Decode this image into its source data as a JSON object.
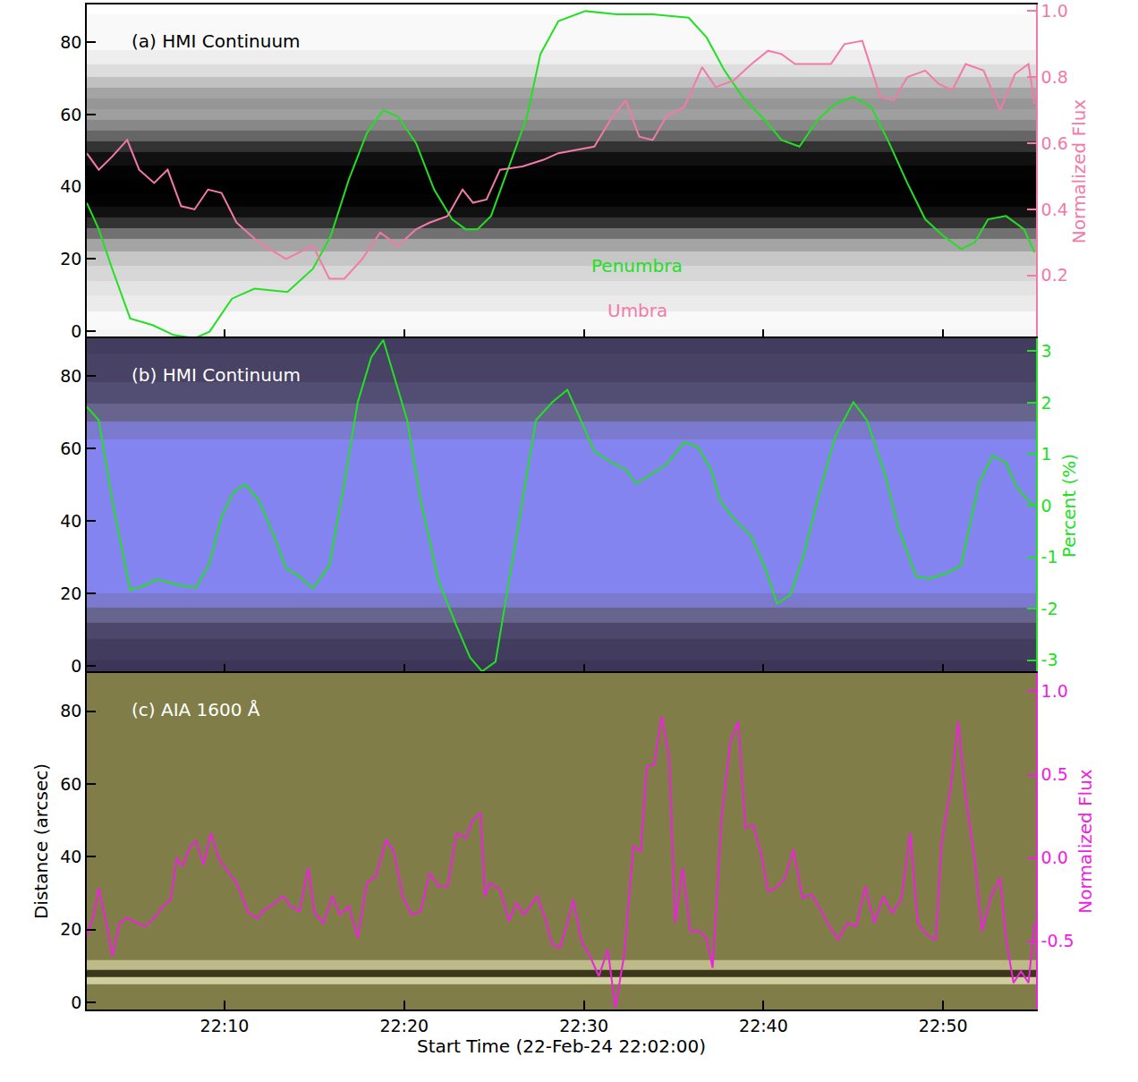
{
  "chart_data": [
    {
      "type": "line",
      "title": "(a) HMI Continuum",
      "xlim": [
        "22:02:20",
        "22:55:10"
      ],
      "xticks": [
        "22:10",
        "22:20",
        "22:30",
        "22:40",
        "22:50"
      ],
      "ylim": [
        -2,
        90.5
      ],
      "yticks": [
        0,
        20,
        40,
        60,
        80
      ],
      "y2lim": [
        0.01,
        1.02
      ],
      "y2ticks": [
        {
          "value": 0.2,
          "label": "0.2"
        },
        {
          "value": 0.4,
          "label": "0.4"
        },
        {
          "value": 0.6,
          "label": "0.6"
        },
        {
          "value": 0.8,
          "label": "0.8"
        },
        {
          "value": 1.0,
          "label": "1.0"
        }
      ],
      "y2label": "Normalized Flux",
      "grid": false,
      "tick_labels": "y",
      "background": {
        "distance": [
          -2,
          3,
          8,
          12,
          16,
          20,
          24,
          27,
          30,
          33,
          36,
          40,
          44,
          48,
          51,
          54,
          57,
          60,
          63,
          66,
          69,
          72,
          76,
          80,
          85,
          90.5
        ],
        "intensity": [
          0.88,
          0.9,
          0.85,
          0.82,
          0.78,
          0.72,
          0.6,
          0.42,
          0.2,
          0.08,
          0.03,
          0.02,
          0.03,
          0.08,
          0.2,
          0.38,
          0.5,
          0.58,
          0.55,
          0.6,
          0.7,
          0.8,
          0.86,
          0.9,
          0.9,
          0.92
        ]
      },
      "series": [
        {
          "name": "Penumbra",
          "color": "#22e022",
          "axis": "y2",
          "x": [
            "22:02:20",
            "22:03:00",
            "22:03:45",
            "22:04:45",
            "22:06:00",
            "22:07:10",
            "22:08:20",
            "22:09:10",
            "22:10:25",
            "22:11:40",
            "22:13:30",
            "22:14:55",
            "22:15:55",
            "22:16:55",
            "22:17:55",
            "22:18:50",
            "22:19:40",
            "22:20:40",
            "22:21:40",
            "22:22:40",
            "22:23:25",
            "22:24:05",
            "22:24:50",
            "22:25:50",
            "22:26:50",
            "22:27:35",
            "22:28:35",
            "22:30:05",
            "22:31:50",
            "22:33:50",
            "22:35:50",
            "22:36:50",
            "22:37:50",
            "22:38:50",
            "22:40:05",
            "22:41:00",
            "22:42:00",
            "22:43:00",
            "22:44:00",
            "22:45:00",
            "22:46:00",
            "22:47:00",
            "22:48:00",
            "22:49:00",
            "22:50:00",
            "22:51:00",
            "22:51:45",
            "22:52:30",
            "22:53:30",
            "22:54:30",
            "22:55:05"
          ],
          "values": [
            0.42,
            0.34,
            0.22,
            0.07,
            0.05,
            0.02,
            0.01,
            0.03,
            0.13,
            0.16,
            0.15,
            0.22,
            0.32,
            0.49,
            0.63,
            0.7,
            0.68,
            0.6,
            0.46,
            0.37,
            0.34,
            0.34,
            0.38,
            0.53,
            0.68,
            0.87,
            0.97,
            1.0,
            0.99,
            0.99,
            0.98,
            0.92,
            0.82,
            0.74,
            0.67,
            0.61,
            0.59,
            0.67,
            0.72,
            0.74,
            0.71,
            0.6,
            0.48,
            0.37,
            0.32,
            0.28,
            0.3,
            0.37,
            0.38,
            0.34,
            0.27
          ]
        },
        {
          "name": "Umbra",
          "color": "#f27aa8",
          "axis": "y2",
          "x": [
            "22:02:20",
            "22:03:00",
            "22:03:45",
            "22:04:35",
            "22:05:15",
            "22:06:05",
            "22:06:50",
            "22:07:35",
            "22:08:20",
            "22:09:05",
            "22:09:50",
            "22:10:40",
            "22:11:55",
            "22:13:25",
            "22:14:55",
            "22:15:50",
            "22:16:40",
            "22:17:40",
            "22:18:40",
            "22:19:40",
            "22:20:40",
            "22:21:25",
            "22:22:25",
            "22:23:15",
            "22:23:50",
            "22:24:35",
            "22:25:20",
            "22:26:35",
            "22:27:45",
            "22:28:35",
            "22:29:35",
            "22:30:35",
            "22:31:35",
            "22:32:20",
            "22:33:05",
            "22:33:50",
            "22:34:35",
            "22:35:35",
            "22:36:35",
            "22:37:20",
            "22:38:20",
            "22:39:20",
            "22:40:15",
            "22:41:00",
            "22:41:45",
            "22:42:45",
            "22:43:45",
            "22:44:30",
            "22:45:30",
            "22:46:30",
            "22:47:15",
            "22:48:00",
            "22:49:00",
            "22:49:45",
            "22:50:30",
            "22:51:15",
            "22:52:15",
            "22:53:10",
            "22:54:00",
            "22:54:45",
            "22:55:05"
          ],
          "values": [
            0.57,
            0.52,
            0.56,
            0.61,
            0.52,
            0.48,
            0.52,
            0.41,
            0.4,
            0.46,
            0.45,
            0.36,
            0.3,
            0.25,
            0.29,
            0.19,
            0.19,
            0.25,
            0.33,
            0.29,
            0.34,
            0.36,
            0.38,
            0.46,
            0.42,
            0.43,
            0.52,
            0.53,
            0.55,
            0.57,
            0.58,
            0.59,
            0.68,
            0.73,
            0.62,
            0.61,
            0.68,
            0.71,
            0.83,
            0.77,
            0.79,
            0.84,
            0.88,
            0.87,
            0.84,
            0.84,
            0.84,
            0.9,
            0.91,
            0.74,
            0.73,
            0.8,
            0.82,
            0.78,
            0.76,
            0.84,
            0.82,
            0.7,
            0.81,
            0.84,
            0.72
          ]
        }
      ]
    },
    {
      "type": "line",
      "title": "(b) HMI Continuum",
      "xlim": [
        "22:02:20",
        "22:55:10"
      ],
      "xticks": [
        "22:10",
        "22:20",
        "22:30",
        "22:40",
        "22:50"
      ],
      "ylim": [
        -2,
        90.5
      ],
      "yticks": [
        0,
        20,
        40,
        60,
        80
      ],
      "y2lim": [
        -3.25,
        3.25
      ],
      "y2ticks": [
        -3,
        -2,
        -1,
        0,
        1,
        2,
        3
      ],
      "y2label": "Percent (%)",
      "grid": false,
      "tick_labels": "y",
      "background": {
        "distance": [
          -2,
          5,
          10,
          14,
          18,
          22,
          60,
          65,
          70,
          75,
          82,
          90.5
        ],
        "intensity": [
          0.15,
          0.2,
          0.3,
          0.55,
          0.85,
          1,
          1,
          0.85,
          0.55,
          0.35,
          0.25,
          0.2
        ]
      },
      "series": [
        {
          "color": "#22e022",
          "axis": "y2",
          "x": [
            "22:02:20",
            "22:03:00",
            "22:03:45",
            "22:04:45",
            "22:05:30",
            "22:06:15",
            "22:07:00",
            "22:07:40",
            "22:08:25",
            "22:09:10",
            "22:09:50",
            "22:10:30",
            "22:11:10",
            "22:11:55",
            "22:12:40",
            "22:13:25",
            "22:14:10",
            "22:14:55",
            "22:15:50",
            "22:16:40",
            "22:17:25",
            "22:18:10",
            "22:18:50",
            "22:19:25",
            "22:20:10",
            "22:20:55",
            "22:21:55",
            "22:22:55",
            "22:23:40",
            "22:24:20",
            "22:25:05",
            "22:25:45",
            "22:26:35",
            "22:27:20",
            "22:28:15",
            "22:29:05",
            "22:29:50",
            "22:30:35",
            "22:31:35",
            "22:32:20",
            "22:32:55",
            "22:33:35",
            "22:34:35",
            "22:35:35",
            "22:36:20",
            "22:37:05",
            "22:37:35",
            "22:38:20",
            "22:39:20",
            "22:40:05",
            "22:40:45",
            "22:41:30",
            "22:42:15",
            "22:43:00",
            "22:44:00",
            "22:45:00",
            "22:45:45",
            "22:46:45",
            "22:47:30",
            "22:48:30",
            "22:49:15",
            "22:50:15",
            "22:51:00",
            "22:52:00",
            "22:52:45",
            "22:53:30",
            "22:54:05",
            "22:54:45",
            "22:55:05"
          ],
          "values": [
            1.92,
            1.66,
            0.1,
            -1.64,
            -1.56,
            -1.43,
            -1.5,
            -1.56,
            -1.59,
            -1.12,
            -0.22,
            0.27,
            0.41,
            0.1,
            -0.51,
            -1.21,
            -1.38,
            -1.61,
            -1.16,
            0.44,
            2.01,
            2.88,
            3.22,
            2.53,
            1.66,
            0.1,
            -1.47,
            -2.34,
            -2.95,
            -3.22,
            -3.03,
            -1.64,
            0.1,
            1.66,
            2.01,
            2.25,
            1.66,
            1.05,
            0.83,
            0.7,
            0.43,
            0.58,
            0.79,
            1.23,
            1.14,
            0.7,
            0.1,
            -0.25,
            -0.6,
            -1.21,
            -1.9,
            -1.73,
            -0.95,
            0.1,
            1.35,
            2.01,
            1.66,
            0.62,
            -0.43,
            -1.38,
            -1.42,
            -1.3,
            -1.16,
            0.44,
            0.97,
            0.83,
            0.36,
            0.1,
            0.01
          ]
        }
      ]
    },
    {
      "type": "line",
      "title": "(c) AIA 1600 Å",
      "xlim": [
        "22:02:20",
        "22:55:10"
      ],
      "xticks": [
        "22:10",
        "22:20",
        "22:30",
        "22:40",
        "22:50"
      ],
      "xlabel": "Start Time (22-Feb-24 22:02:00)",
      "ylim": [
        -2,
        90.5
      ],
      "yticks": [
        0,
        20,
        40,
        60,
        80
      ],
      "ylabel": "Distance (arcsec)",
      "y2lim": [
        -0.91,
        1.11
      ],
      "y2ticks": [
        {
          "value": -0.5,
          "label": "-0.5"
        },
        {
          "value": 0,
          "label": "0.0"
        },
        {
          "value": 0.5,
          "label": "0.5"
        },
        {
          "value": 1.0,
          "label": "1.0"
        }
      ],
      "y2label": "Normalized Flux",
      "grid": false,
      "background": {
        "distance": [
          -2,
          4,
          6,
          8,
          10,
          13,
          20,
          90.5
        ],
        "intensity": [
          0.5,
          0.5,
          0.7,
          0.35,
          0.65,
          0.5,
          0.5,
          0.5
        ]
      },
      "series": [
        {
          "color": "#f020e0",
          "axis": "y2",
          "x": [
            "22:02:20",
            "22:02:45",
            "22:03:00",
            "22:03:25",
            "22:03:45",
            "22:04:10",
            "22:04:35",
            "22:05:05",
            "22:05:35",
            "22:06:05",
            "22:06:35",
            "22:07:00",
            "22:07:20",
            "22:07:40",
            "22:08:05",
            "22:08:25",
            "22:08:50",
            "22:09:15",
            "22:09:40",
            "22:10:10",
            "22:10:40",
            "22:11:20",
            "22:11:50",
            "22:12:15",
            "22:12:40",
            "22:13:15",
            "22:13:40",
            "22:14:10",
            "22:14:40",
            "22:15:00",
            "22:15:30",
            "22:16:00",
            "22:16:25",
            "22:16:55",
            "22:17:25",
            "22:17:55",
            "22:18:25",
            "22:19:00",
            "22:19:25",
            "22:19:55",
            "22:20:25",
            "22:20:55",
            "22:21:25",
            "22:21:55",
            "22:22:25",
            "22:22:55",
            "22:23:25",
            "22:23:50",
            "22:24:15",
            "22:24:30",
            "22:24:45",
            "22:25:20",
            "22:25:50",
            "22:26:15",
            "22:26:40",
            "22:27:05",
            "22:27:25",
            "22:27:50",
            "22:28:15",
            "22:28:40",
            "22:29:05",
            "22:29:25",
            "22:29:50",
            "22:30:20",
            "22:30:50",
            "22:31:20",
            "22:31:45",
            "22:32:15",
            "22:32:45",
            "22:33:10",
            "22:33:30",
            "22:33:55",
            "22:34:20",
            "22:34:45",
            "22:35:05",
            "22:35:30",
            "22:35:55",
            "22:36:25",
            "22:36:50",
            "22:37:10",
            "22:37:40",
            "22:38:10",
            "22:38:35",
            "22:39:00",
            "22:39:25",
            "22:39:50",
            "22:40:15",
            "22:40:40",
            "22:41:10",
            "22:41:40",
            "22:42:10",
            "22:42:40",
            "22:43:10",
            "22:43:40",
            "22:44:10",
            "22:44:40",
            "22:45:10",
            "22:45:40",
            "22:46:10",
            "22:46:40",
            "22:47:10",
            "22:47:40",
            "22:48:10",
            "22:48:35",
            "22:49:05",
            "22:49:35",
            "22:49:55",
            "22:50:25",
            "22:50:50",
            "22:51:15",
            "22:51:45",
            "22:52:10",
            "22:52:40",
            "22:53:10",
            "22:53:30",
            "22:53:55",
            "22:54:20",
            "22:54:45",
            "22:55:05"
          ],
          "values": [
            -0.47,
            -0.33,
            -0.18,
            -0.39,
            -0.59,
            -0.39,
            -0.36,
            -0.39,
            -0.41,
            -0.36,
            -0.29,
            -0.25,
            0.0,
            -0.05,
            0.07,
            0.1,
            -0.04,
            0.15,
            0.0,
            -0.08,
            -0.15,
            -0.33,
            -0.36,
            -0.31,
            -0.28,
            -0.23,
            -0.29,
            -0.32,
            -0.06,
            -0.33,
            -0.39,
            -0.23,
            -0.34,
            -0.29,
            -0.48,
            -0.15,
            -0.11,
            0.11,
            0.04,
            -0.23,
            -0.34,
            -0.32,
            -0.09,
            -0.17,
            -0.17,
            0.15,
            0.12,
            0.23,
            0.27,
            -0.23,
            -0.15,
            -0.19,
            -0.38,
            -0.27,
            -0.34,
            -0.28,
            -0.23,
            -0.36,
            -0.52,
            -0.54,
            -0.39,
            -0.25,
            -0.49,
            -0.59,
            -0.71,
            -0.55,
            -0.9,
            -0.58,
            0.07,
            0.04,
            0.55,
            0.56,
            0.85,
            0.6,
            -0.39,
            -0.06,
            -0.44,
            -0.44,
            -0.48,
            -0.66,
            0.25,
            0.7,
            0.82,
            0.18,
            0.2,
            0.04,
            -0.2,
            -0.18,
            -0.13,
            0.05,
            -0.24,
            -0.22,
            -0.31,
            -0.41,
            -0.49,
            -0.39,
            -0.41,
            -0.17,
            -0.39,
            -0.23,
            -0.33,
            -0.25,
            0.15,
            -0.39,
            -0.46,
            -0.49,
            0.1,
            0.42,
            0.82,
            0.37,
            -0.01,
            -0.44,
            -0.23,
            -0.12,
            -0.49,
            -0.75,
            -0.68,
            -0.75,
            -0.39
          ]
        }
      ]
    }
  ]
}
